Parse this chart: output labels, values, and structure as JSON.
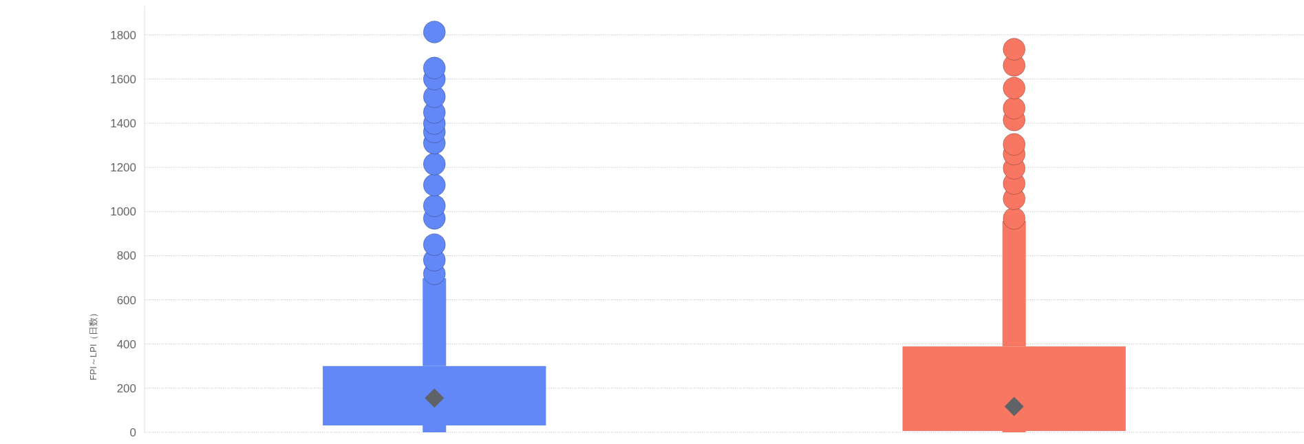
{
  "chart_data": {
    "type": "box",
    "ylabel": "FPI～LPI（日数）",
    "categories": [
      null,
      null
    ],
    "ylim": [
      0,
      1930
    ],
    "yticks": [
      0,
      200,
      400,
      600,
      800,
      1000,
      1200,
      1400,
      1600,
      1800
    ],
    "grid": "y",
    "series": [
      {
        "color": "#6287f7",
        "boxes": [
          {
            "low": 0,
            "q1": 31,
            "q3": 300,
            "high": 698,
            "mean": 155,
            "outliers": [
              718,
              780,
              850,
              969,
              1026,
              1120,
              1215,
              1310,
              1360,
              1399,
              1449,
              1520,
              1600,
              1650,
              1813
            ]
          },
          null
        ]
      },
      {
        "color": "#f87762",
        "boxes": [
          null,
          {
            "low": 0,
            "q1": 6,
            "q3": 389,
            "high": 957,
            "mean": 117,
            "outliers": [
              969,
              1058,
              1127,
              1196,
              1260,
              1304,
              1415,
              1468,
              1559,
              1662,
              1735
            ]
          }
        ]
      }
    ]
  }
}
